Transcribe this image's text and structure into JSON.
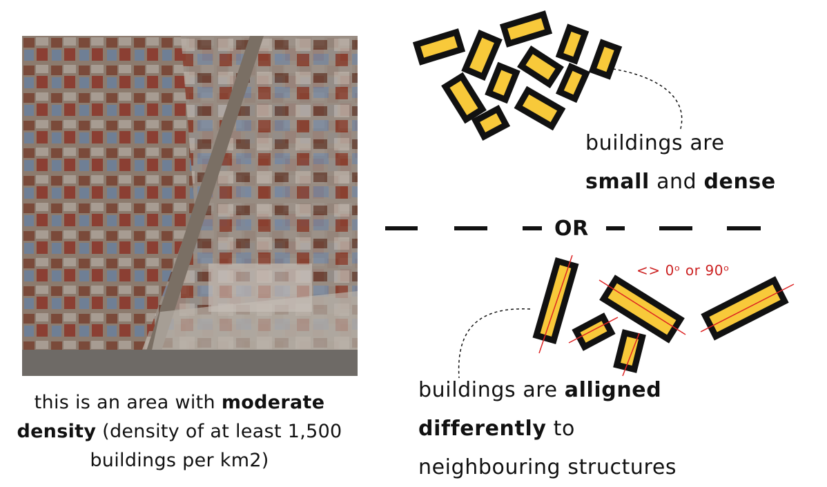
{
  "aerial": {
    "alt": "satellite image of a moderate density area"
  },
  "left_caption": {
    "p1": "this is an area with ",
    "b1": "moderate",
    "b2": "density",
    "p2": " (density of at least 1,500 buildings per km2)"
  },
  "top_label": {
    "p1": "buildings are",
    "b1": "small",
    "p2": " and ",
    "b2": "dense"
  },
  "separator": {
    "text": "OR"
  },
  "angle_note": "<> 0ᵒ or 90ᵒ",
  "bottom_label": {
    "p1": "buildings are ",
    "b1": "alligned",
    "b2": "differently",
    "p2": " to",
    "p3": "neighbouring structures"
  },
  "colors": {
    "building_fill": "#f8c93a",
    "building_stroke": "#111111",
    "axis_line": "#dd2222",
    "note_text": "#cc2222"
  }
}
